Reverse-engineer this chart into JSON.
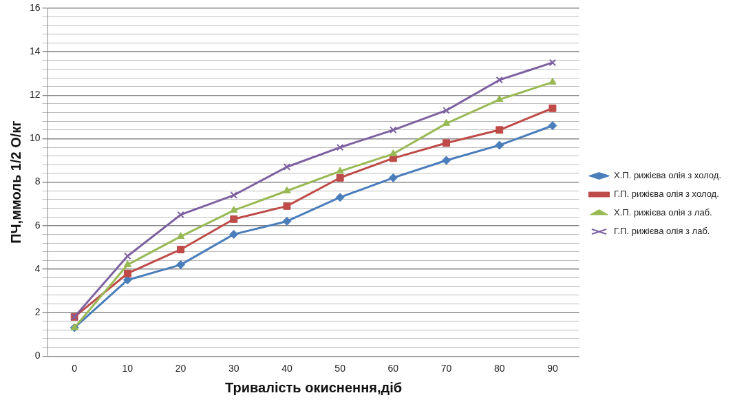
{
  "chart_data": {
    "type": "line",
    "xlabel": "Тривалість окиснення,діб",
    "ylabel": "ПЧ,ммоль 1/2 О/кг",
    "categories": [
      "0",
      "10",
      "20",
      "30",
      "40",
      "50",
      "60",
      "70",
      "80",
      "90"
    ],
    "series": [
      {
        "name": "Х.П. рижієва олія з холод.",
        "color": "#4a7ebb",
        "marker": "diamond",
        "values": [
          1.3,
          3.5,
          4.2,
          5.6,
          6.2,
          7.3,
          8.2,
          9.0,
          9.7,
          10.6
        ]
      },
      {
        "name": "Г.П. рижієва олія з холод.",
        "color": "#be4b48",
        "marker": "square",
        "values": [
          1.8,
          3.8,
          4.9,
          6.3,
          6.9,
          8.2,
          9.1,
          9.8,
          10.4,
          11.4
        ]
      },
      {
        "name": "Х.П. рижієва олія з лаб.",
        "color": "#98b954",
        "marker": "triangle",
        "values": [
          1.3,
          4.2,
          5.5,
          6.7,
          7.6,
          8.5,
          9.3,
          10.7,
          11.8,
          12.6
        ]
      },
      {
        "name": "Г.П. рижієва олія з лаб.",
        "color": "#7d60a0",
        "marker": "cross",
        "values": [
          1.8,
          4.6,
          6.5,
          7.4,
          8.7,
          9.6,
          10.4,
          11.3,
          12.7,
          13.5
        ]
      }
    ],
    "ylim": [
      0,
      16
    ],
    "yticks": [
      0,
      {
        "value": 0.4,
        "label": null
      },
      {
        "value": 0.8,
        "label": null
      },
      {
        "value": 1.2,
        "label": null
      },
      {
        "value": 1.6,
        "label": null
      },
      2,
      {
        "value": 2.4,
        "label": null
      },
      {
        "value": 2.8,
        "label": null
      },
      {
        "value": 3.2,
        "label": null
      },
      {
        "value": 3.6,
        "label": null
      },
      4,
      {
        "value": 4.4,
        "label": null
      },
      {
        "value": 4.8,
        "label": null
      },
      {
        "value": 5.2,
        "label": null
      },
      {
        "value": 5.6,
        "label": null
      },
      6,
      {
        "value": 6.4,
        "label": null
      },
      {
        "value": 6.8,
        "label": null
      },
      {
        "value": 7.2,
        "label": null
      },
      {
        "value": 7.6,
        "label": null
      },
      8,
      {
        "value": 8.4,
        "label": null
      },
      {
        "value": 8.8,
        "label": null
      },
      {
        "value": 9.2,
        "label": null
      },
      {
        "value": 9.6,
        "label": null
      },
      10,
      {
        "value": 10.4,
        "label": null
      },
      {
        "value": 10.8,
        "label": null
      },
      {
        "value": 11.2,
        "label": null
      },
      {
        "value": 11.6,
        "label": null
      },
      12,
      {
        "value": 12.4,
        "label": null
      },
      {
        "value": 12.8,
        "label": null
      },
      {
        "value": 13.2,
        "label": null
      },
      {
        "value": 13.6,
        "label": null
      },
      14,
      {
        "value": 14.4,
        "label": null
      },
      {
        "value": 14.8,
        "label": null
      },
      {
        "value": 15.2,
        "label": null
      },
      {
        "value": 15.6,
        "label": null
      },
      16
    ],
    "grid": "y",
    "legend": "right",
    "line_style": "solid"
  }
}
